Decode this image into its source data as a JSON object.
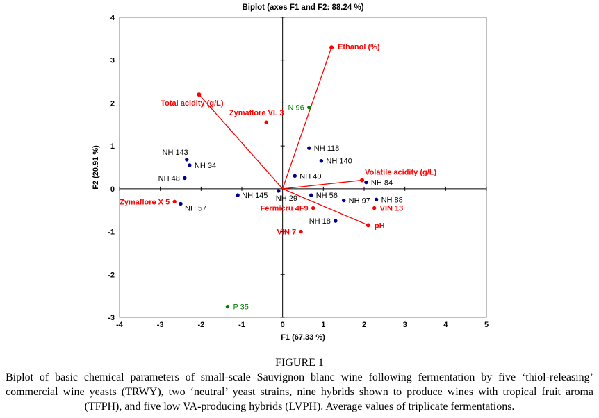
{
  "figure": {
    "caption_label": "FIGURE 1",
    "caption_text": "Biplot of basic chemical parameters of small-scale Sauvignon blanc wine following fermentation by five ‘thiol-releasing’ commercial wine yeasts (TRWY), two ‘neutral’ yeast strains, nine hybrids shown to produce wines with tropical fruit aroma (TFPH), and five low VA-producing hybrids (LVPH). Average values of triplicate fermentations."
  },
  "chart_data": {
    "type": "scatter",
    "title": "Biplot (axes F1 and F2: 88.24 %)",
    "xlabel": "F1 (67.33 %)",
    "ylabel": "F2 (20.91 %)",
    "xlim": [
      -4,
      5
    ],
    "ylim": [
      -3,
      4
    ],
    "xticks": [
      -4,
      -3,
      -2,
      -1,
      0,
      1,
      2,
      3,
      4,
      5
    ],
    "yticks": [
      -3,
      -2,
      -1,
      0,
      1,
      2,
      3,
      4
    ],
    "grid": false,
    "legend": "none",
    "colors": {
      "vector": "#ff0000",
      "trwy": "#ff0000",
      "neutral": "#008000",
      "hybrid": "#00008b",
      "axis": "#000000",
      "frame": "#7f7f7f"
    },
    "vectors": [
      {
        "label": "Ethanol (%)",
        "x": 1.2,
        "y": 3.3,
        "anchor": "start",
        "dx": 9,
        "dy": 3
      },
      {
        "label": "Total acidity (g/L)",
        "x": -2.05,
        "y": 2.2,
        "anchor": "middle",
        "dx": -10,
        "dy": 16
      },
      {
        "label": "Volatile acidity (g/L)",
        "x": 1.95,
        "y": 0.2,
        "anchor": "start",
        "dx": 4,
        "dy": -8
      },
      {
        "label": "pH",
        "x": 2.1,
        "y": -0.85,
        "anchor": "start",
        "dx": 9,
        "dy": 4
      }
    ],
    "series": [
      {
        "name": "Thiol-releasing commercial wine yeasts (TRWY)",
        "color_key": "trwy",
        "label_color": "#ff0000",
        "bold_labels": true,
        "points": [
          {
            "label": "Zymaflore VL 3",
            "x": -0.4,
            "y": 1.55,
            "anchor": "middle",
            "dx": -14,
            "dy": -10
          },
          {
            "label": "Zymaflore X 5",
            "x": -2.65,
            "y": -0.3,
            "anchor": "end",
            "dx": -7,
            "dy": 4
          },
          {
            "label": "Fermicru 4F9",
            "x": 0.75,
            "y": -0.45,
            "anchor": "end",
            "dx": -7,
            "dy": 4
          },
          {
            "label": "VIN 7",
            "x": 0.45,
            "y": -1.0,
            "anchor": "end",
            "dx": -7,
            "dy": 4
          },
          {
            "label": "VIN 13",
            "x": 2.25,
            "y": -0.45,
            "anchor": "start",
            "dx": 8,
            "dy": 4
          }
        ]
      },
      {
        "name": "Neutral yeast strains",
        "color_key": "neutral",
        "label_color": "#008000",
        "bold_labels": false,
        "points": [
          {
            "label": "N 96",
            "x": 0.65,
            "y": 1.9,
            "anchor": "end",
            "dx": -7,
            "dy": 4
          },
          {
            "label": "P 35",
            "x": -1.35,
            "y": -2.75,
            "anchor": "start",
            "dx": 8,
            "dy": 4
          }
        ]
      },
      {
        "name": "Hybrids (TFPH and LVPH)",
        "color_key": "hybrid",
        "label_color": "#000000",
        "bold_labels": false,
        "points": [
          {
            "label": "NH 143",
            "x": -2.35,
            "y": 0.68,
            "anchor": "end",
            "dx": 2,
            "dy": -7
          },
          {
            "label": "NH 34",
            "x": -2.28,
            "y": 0.55,
            "anchor": "start",
            "dx": 7,
            "dy": 4
          },
          {
            "label": "NH 48",
            "x": -2.4,
            "y": 0.25,
            "anchor": "end",
            "dx": -7,
            "dy": 4
          },
          {
            "label": "NH 57",
            "x": -2.5,
            "y": -0.35,
            "anchor": "start",
            "dx": 6,
            "dy": 10
          },
          {
            "label": "NH 145",
            "x": -1.1,
            "y": -0.15,
            "anchor": "start",
            "dx": 6,
            "dy": 4
          },
          {
            "label": "NH 29",
            "x": -0.1,
            "y": -0.05,
            "anchor": "start",
            "dx": -4,
            "dy": 14
          },
          {
            "label": "NH 118",
            "x": 0.65,
            "y": 0.95,
            "anchor": "start",
            "dx": 7,
            "dy": 4
          },
          {
            "label": "NH 140",
            "x": 0.95,
            "y": 0.65,
            "anchor": "start",
            "dx": 7,
            "dy": 4
          },
          {
            "label": "NH 40",
            "x": 0.3,
            "y": 0.3,
            "anchor": "start",
            "dx": 7,
            "dy": 4
          },
          {
            "label": "NH 56",
            "x": 0.7,
            "y": -0.15,
            "anchor": "start",
            "dx": 7,
            "dy": 4
          },
          {
            "label": "NH 84",
            "x": 2.05,
            "y": 0.15,
            "anchor": "start",
            "dx": 7,
            "dy": 4
          },
          {
            "label": "NH 97",
            "x": 1.5,
            "y": -0.27,
            "anchor": "start",
            "dx": 7,
            "dy": 4
          },
          {
            "label": "NH 88",
            "x": 2.3,
            "y": -0.25,
            "anchor": "start",
            "dx": 7,
            "dy": 4
          },
          {
            "label": "NH 18",
            "x": 1.3,
            "y": -0.75,
            "anchor": "end",
            "dx": -7,
            "dy": 4
          }
        ]
      }
    ]
  }
}
